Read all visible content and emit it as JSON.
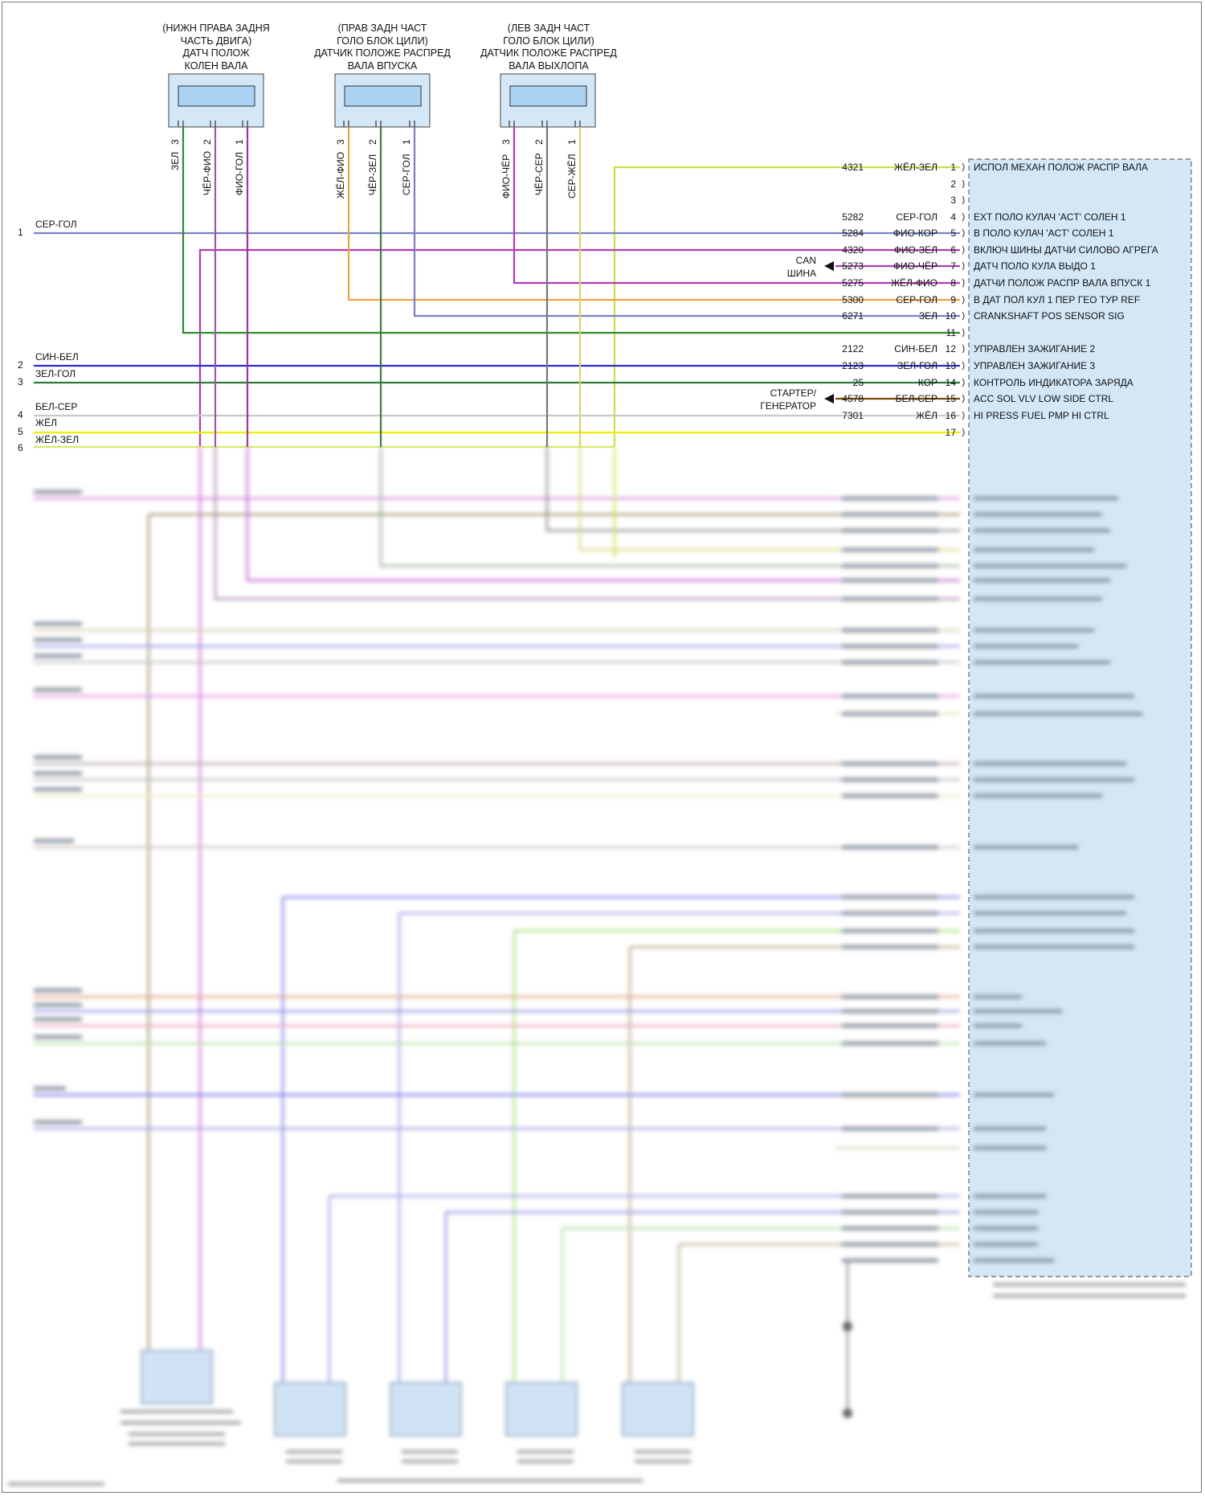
{
  "sensors": [
    {
      "id": "crank",
      "title_lines": [
        "(НИЖН ПРАВА ЗАДНЯ",
        "ЧАСТЬ ДВИГА)",
        "ДАТЧ ПОЛОЖ",
        "КОЛЕН ВАЛА"
      ],
      "pins": [
        {
          "label": "ЗЕЛ",
          "num": "3"
        },
        {
          "label": "ЧЁР-ФИО",
          "num": "2"
        },
        {
          "label": "ФИО-ГОЛ",
          "num": "1"
        }
      ]
    },
    {
      "id": "cam_in",
      "title_lines": [
        "(ПРАВ ЗАДН ЧАСТ",
        "ГОЛО БЛОК ЦИЛИ)",
        "ДАТЧИК ПОЛОЖЕ РАСПРЕД",
        "ВАЛА ВПУСКА"
      ],
      "pins": [
        {
          "label": "ЖЁЛ-ФИО",
          "num": "3"
        },
        {
          "label": "ЧЁР-ЗЕЛ",
          "num": "2"
        },
        {
          "label": "СЕР-ГОЛ",
          "num": "1"
        }
      ]
    },
    {
      "id": "cam_ex",
      "title_lines": [
        "(ЛЕВ ЗАДН ЧАСТ",
        "ГОЛО БЛОК ЦИЛИ)",
        "ДАТЧИК ПОЛОЖЕ РАСПРЕД",
        "ВАЛА ВЫХЛОПА"
      ],
      "pins": [
        {
          "label": "ФИО-ЧЁР",
          "num": "3"
        },
        {
          "label": "ЧЁР-СЕР",
          "num": "2"
        },
        {
          "label": "СЕР-ЖЁЛ",
          "num": "1"
        }
      ]
    }
  ],
  "left_wires": [
    {
      "num": "1",
      "label": "СЕР-ГОЛ"
    },
    {
      "num": "2",
      "label": "СИН-БЕЛ"
    },
    {
      "num": "2",
      "label": "ЗЕЛ-ГОЛ"
    },
    {
      "num": "3",
      "label": ""
    },
    {
      "num": "4",
      "label": "БЕЛ-СЕР"
    },
    {
      "num": "4",
      "label": "ЖЁЛ"
    },
    {
      "num": "5",
      "label": "ЖЁЛ-ЗЕЛ"
    },
    {
      "num": "6",
      "label": ""
    }
  ],
  "pcm_pins": [
    {
      "pin": "1",
      "circuit": "4321",
      "color": "ЖЁЛ-ЗЕЛ",
      "desc": "ИСПОЛ МЕХАН ПОЛОЖ РАСПР ВАЛА"
    },
    {
      "pin": "2",
      "circuit": "",
      "color": "",
      "desc": ""
    },
    {
      "pin": "3",
      "circuit": "",
      "color": "",
      "desc": ""
    },
    {
      "pin": "4",
      "circuit": "5282",
      "color": "СЕР-ГОЛ",
      "desc": "EXT ПОЛО КУЛАЧ 'ACT' СОЛЕН 1"
    },
    {
      "pin": "5",
      "circuit": "5284",
      "color": "ФИО-КОР",
      "desc": "В ПОЛО КУЛАЧ 'ACT' СОЛЕН 1"
    },
    {
      "pin": "6",
      "circuit": "4320",
      "color": "ФИО-ЗЕЛ",
      "desc": "ВКЛЮЧ ШИНЫ ДАТЧИ СИЛОВО АГРЕГА"
    },
    {
      "pin": "7",
      "circuit": "5273",
      "color": "ФИО-ЧЁР",
      "desc": "ДАТЧ ПОЛО КУЛА ВЫДО 1"
    },
    {
      "pin": "8",
      "circuit": "5275",
      "color": "ЖЁЛ-ФИО",
      "desc": "ДАТЧИ ПОЛОЖ РАСПР ВАЛА ВПУСК 1"
    },
    {
      "pin": "9",
      "circuit": "5300",
      "color": "СЕР-ГОЛ",
      "desc": "В ДАТ ПОЛ КУЛ 1 ПЕР ГЕО ТУР REF"
    },
    {
      "pin": "10",
      "circuit": "6271",
      "color": "ЗЕЛ",
      "desc": "CRANKSHAFT POS SENSOR SIG"
    },
    {
      "pin": "11",
      "circuit": "",
      "color": "",
      "desc": ""
    },
    {
      "pin": "12",
      "circuit": "2122",
      "color": "СИН-БЕЛ",
      "desc": "УПРАВЛЕН ЗАЖИГАНИЕ 2"
    },
    {
      "pin": "13",
      "circuit": "2123",
      "color": "ЗЕЛ-ГОЛ",
      "desc": "УПРАВЛЕН ЗАЖИГАНИЕ 3"
    },
    {
      "pin": "14",
      "circuit": "25",
      "color": "КОР",
      "desc": "КОНТРОЛЬ ИНДИКАТОРА ЗАРЯДА"
    },
    {
      "pin": "15",
      "circuit": "4578",
      "color": "БЕЛ-СЕР",
      "desc": "ACC SOL VLV LOW SIDE CTRL"
    },
    {
      "pin": "16",
      "circuit": "7301",
      "color": "ЖЁЛ",
      "desc": "HI PRESS FUEL PMP HI CTRL"
    },
    {
      "pin": "17",
      "circuit": "",
      "color": "",
      "desc": ""
    }
  ],
  "side_labels": {
    "can_1": "CAN",
    "can_2": "ШИНА",
    "starter_1": "СТАРТЕР/",
    "starter_2": "ГЕНЕРАТОР"
  },
  "wire_colors": {
    "yellow_green": "#c9e04a",
    "gray_blue": "#7a7fc4",
    "purple": "#b23ab2",
    "violet_green": "#b93fb5",
    "orange": "#f0a040",
    "dark_green": "#2f8a2f",
    "blue": "#2a2ad0",
    "green_blue": "#2c7a3c",
    "white_gray": "#bdbdbd",
    "yellow": "#e8e800",
    "gray": "#7a7a7a",
    "brown": "#7a4a10",
    "sensor_fill": "#cfe3f5",
    "pcm_fill": "#cfe3f5"
  }
}
